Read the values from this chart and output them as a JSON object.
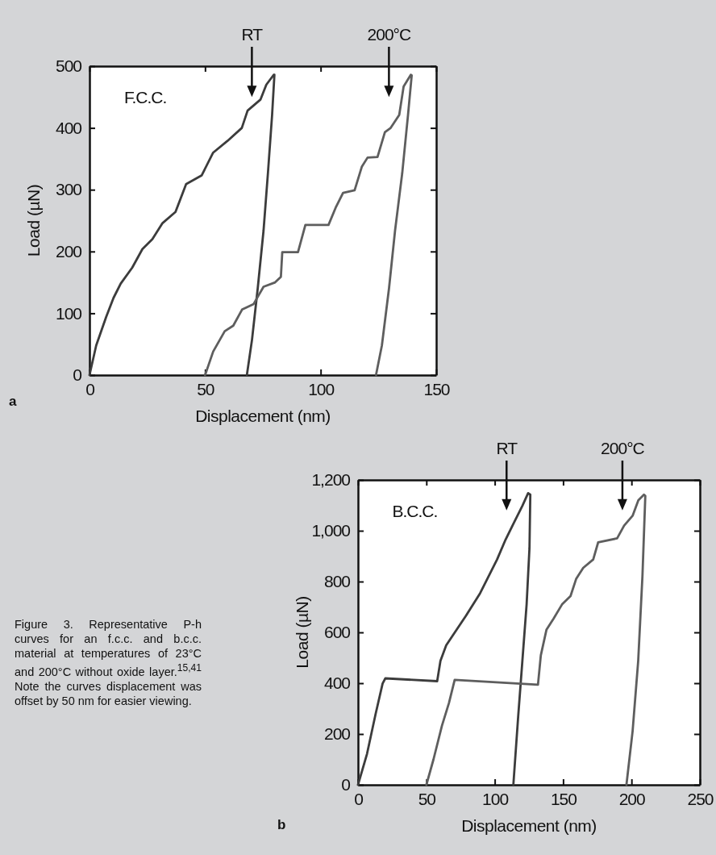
{
  "chart_data": [
    {
      "type": "line",
      "xlabel": "Displacement (nm)",
      "ylabel": "Load (µN)",
      "xlim": [
        0,
        150
      ],
      "ylim": [
        0,
        500
      ],
      "xticks": [
        0,
        50,
        100,
        150
      ],
      "yticks": [
        0,
        100,
        200,
        300,
        400,
        500
      ],
      "grid": false,
      "legend": false,
      "marker": "none",
      "line_style": "solid",
      "annotations": [
        "F.C.C.",
        "a"
      ],
      "series": [
        {
          "name": "RT",
          "color": "#3c3c3c",
          "x": [
            0,
            2.9,
            7.2,
            10.4,
            13.5,
            18.5,
            22.9,
            27.2,
            31.6,
            37.2,
            41.8,
            48.5,
            53.5,
            59.7,
            65.9,
            68.4,
            74,
            76.5,
            79.7,
            80,
            79,
            77.2,
            75.3,
            72.8,
            70.3,
            68.2,
            68.1
          ],
          "values": [
            0,
            48,
            94,
            125,
            148,
            174,
            204,
            220,
            246,
            264,
            309,
            323,
            360,
            379,
            400,
            428,
            446,
            470,
            486,
            486,
            421,
            327,
            234,
            141,
            57,
            3,
            0
          ]
        },
        {
          "name": "200°C",
          "color": "#5e5e5e",
          "x": [
            50,
            53.5,
            58.5,
            62.2,
            66,
            71,
            75.3,
            80.3,
            82.8,
            83.4,
            90.2,
            93.4,
            103.4,
            106.5,
            109.7,
            114.7,
            117.8,
            120.3,
            124.6,
            127.8,
            130.3,
            134,
            135.9,
            139,
            139.4,
            137.8,
            135.3,
            132.2,
            129.6,
            126.5,
            124,
            124
          ],
          "values": [
            0,
            38,
            71,
            80,
            106,
            115,
            143,
            150,
            159,
            199,
            199,
            243,
            243,
            271,
            295,
            299,
            337,
            352,
            353,
            393,
            400,
            421,
            467,
            486,
            485,
            421,
            327,
            234,
            141,
            48,
            1,
            0
          ]
        }
      ]
    },
    {
      "type": "line",
      "xlabel": "Displacement (nm)",
      "ylabel": "Load (µN)",
      "xlim": [
        0,
        250
      ],
      "ylim": [
        0,
        1200
      ],
      "xticks": [
        0,
        50,
        100,
        150,
        200,
        250
      ],
      "yticks": [
        0,
        200,
        400,
        600,
        800,
        {
          "value": 1000,
          "label": "1,000"
        },
        {
          "value": 1200,
          "label": "1,200"
        }
      ],
      "grid": false,
      "legend": false,
      "marker": "none",
      "line_style": "solid",
      "annotations": [
        "B.C.C.",
        "b",
        "Figure 3. Representative P-h curves for an f.c.c. and b.c.c. material at temperatures of 23°C and 200°C without oxide layer.$^{15,41}$ Note the curves displacement was offset by 50 nm for easier viewing."
      ],
      "series": [
        {
          "name": "RT",
          "color": "#3c3c3c",
          "x": [
            0,
            6.6,
            12.8,
            18,
            20,
            57.9,
            60.3,
            64.5,
            70.7,
            78.9,
            89.3,
            101.7,
            107.9,
            114,
            120.2,
            124.4,
            126,
            125.4,
            123.3,
            120.2,
            117.1,
            113.6
          ],
          "values": [
            0,
            122,
            277,
            399,
            419,
            408,
            488,
            549,
            599,
            665,
            754,
            887,
            965,
            1031,
            1098,
            1148,
            1142,
            932,
            710,
            488,
            266,
            0
          ]
        },
        {
          "name": "200°C",
          "color": "#5e5e5e",
          "x": [
            50,
            55.2,
            61.4,
            66.5,
            70.7,
            131.6,
            133.7,
            137.8,
            143,
            149.2,
            155.4,
            159.5,
            164.7,
            172,
            175.6,
            189.5,
            194.6,
            200.8,
            205,
            209.1,
            210.1,
            208,
            204.9,
            200.8,
            196.3
          ],
          "values": [
            0,
            100,
            233,
            322,
            413,
            394,
            510,
            610,
            654,
            710,
            743,
            810,
            854,
            887,
            954,
            970,
            1020,
            1059,
            1120,
            1142,
            1137,
            821,
            488,
            211,
            0
          ]
        }
      ]
    }
  ]
}
